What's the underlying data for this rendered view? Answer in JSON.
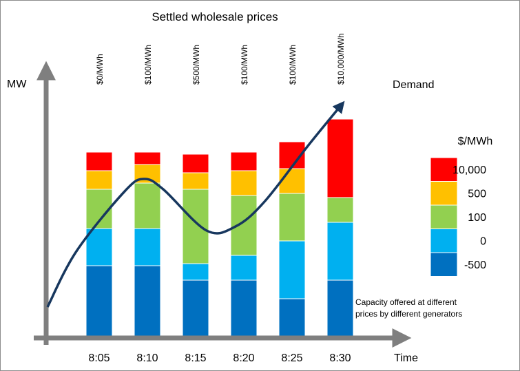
{
  "chart_data": {
    "type": "bar",
    "title": "Settled wholesale prices",
    "ylabel": "MW",
    "xlabel": "Time",
    "categories": [
      "8:05",
      "8:10",
      "8:15",
      "8:20",
      "8:25",
      "8:30"
    ],
    "settled_prices": [
      "$0/MWh",
      "$100/MWh",
      "$500/MWh",
      "$100/MWh",
      "$100/MWh",
      "$10,000/MWh"
    ],
    "price_bands": [
      "-500",
      "0",
      "100",
      "500",
      "10,000"
    ],
    "band_colors": [
      "#0070c0",
      "#00b0f0",
      "#92d050",
      "#ffc000",
      "#ff0000"
    ],
    "stack_values": [
      [
        35,
        18,
        19,
        9,
        9
      ],
      [
        35,
        18,
        22,
        9,
        6
      ],
      [
        28,
        8,
        36,
        8,
        9
      ],
      [
        28,
        12,
        29,
        12,
        9
      ],
      [
        19,
        28,
        23,
        12,
        13
      ],
      [
        28,
        28,
        12,
        0,
        38
      ]
    ],
    "demand_curve": {
      "label": "Demand",
      "points": [
        [
          0,
          15
        ],
        [
          0.6,
          42
        ],
        [
          1.6,
          71
        ],
        [
          2.0,
          77
        ],
        [
          2.4,
          72
        ],
        [
          3.3,
          52
        ],
        [
          3.9,
          54
        ],
        [
          4.5,
          66
        ],
        [
          5.4,
          93
        ],
        [
          6.1,
          113
        ]
      ]
    },
    "legend": {
      "title": "$/MWh",
      "items": [
        "10,000",
        "500",
        "100",
        "0",
        "-500"
      ],
      "colors": [
        "#ff0000",
        "#ffc000",
        "#92d050",
        "#00b0f0",
        "#0070c0"
      ]
    },
    "note": [
      "Capacity offered at different",
      "prices by different generators"
    ],
    "ylim": [
      0,
      120
    ],
    "grid": false,
    "axis_color": "#7f7f7f",
    "demand_color": "#17375e"
  }
}
